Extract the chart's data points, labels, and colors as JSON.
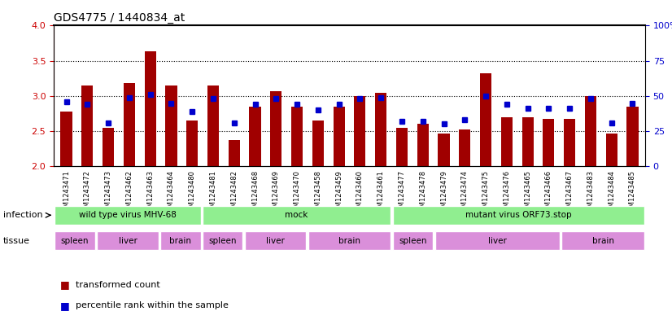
{
  "title": "GDS4775 / 1440834_at",
  "samples": [
    "GSM1243471",
    "GSM1243472",
    "GSM1243473",
    "GSM1243462",
    "GSM1243463",
    "GSM1243464",
    "GSM1243480",
    "GSM1243481",
    "GSM1243482",
    "GSM1243468",
    "GSM1243469",
    "GSM1243470",
    "GSM1243458",
    "GSM1243459",
    "GSM1243460",
    "GSM1243461",
    "GSM1243477",
    "GSM1243478",
    "GSM1243479",
    "GSM1243474",
    "GSM1243475",
    "GSM1243476",
    "GSM1243465",
    "GSM1243466",
    "GSM1243467",
    "GSM1243483",
    "GSM1243484",
    "GSM1243485"
  ],
  "bar_values": [
    2.78,
    3.15,
    2.55,
    3.18,
    3.63,
    3.15,
    2.65,
    3.15,
    2.37,
    2.85,
    3.07,
    2.85,
    2.65,
    2.85,
    3.0,
    3.05,
    2.55,
    2.6,
    2.47,
    2.53,
    3.32,
    2.7,
    2.7,
    2.68,
    2.68,
    3.0,
    2.47,
    2.85
  ],
  "percentile_values": [
    46,
    44,
    31,
    49,
    51,
    45,
    39,
    48,
    31,
    44,
    48,
    44,
    40,
    44,
    48,
    49,
    32,
    32,
    30,
    33,
    50,
    44,
    41,
    41,
    41,
    48,
    31,
    45
  ],
  "ymin": 2.0,
  "ymax": 4.0,
  "yticks": [
    2.0,
    2.5,
    3.0,
    3.5,
    4.0
  ],
  "bar_color": "#a00000",
  "blue_color": "#0000cc",
  "infection_groups": [
    {
      "label": "wild type virus MHV-68",
      "start": 0,
      "end": 7,
      "color": "#90ee90"
    },
    {
      "label": "mock",
      "start": 7,
      "end": 16,
      "color": "#90ee90"
    },
    {
      "label": "mutant virus ORF73.stop",
      "start": 16,
      "end": 28,
      "color": "#00cc00"
    }
  ],
  "tissue_groups": [
    {
      "label": "spleen",
      "start": 0,
      "end": 2,
      "color": "#da8fda"
    },
    {
      "label": "liver",
      "start": 2,
      "end": 5,
      "color": "#da8fda"
    },
    {
      "label": "brain",
      "start": 5,
      "end": 7,
      "color": "#da8fda"
    },
    {
      "label": "spleen",
      "start": 7,
      "end": 9,
      "color": "#da8fda"
    },
    {
      "label": "liver",
      "start": 9,
      "end": 12,
      "color": "#da8fda"
    },
    {
      "label": "brain",
      "start": 12,
      "end": 16,
      "color": "#da8fda"
    },
    {
      "label": "spleen",
      "start": 16,
      "end": 18,
      "color": "#da8fda"
    },
    {
      "label": "liver",
      "start": 18,
      "end": 24,
      "color": "#da8fda"
    },
    {
      "label": "brain",
      "start": 24,
      "end": 28,
      "color": "#da8fda"
    }
  ],
  "infection_labels_positions": [
    {
      "label": "wild type virus MHV-68",
      "start": 0,
      "end": 7
    },
    {
      "label": "mock",
      "start": 7,
      "end": 16
    },
    {
      "label": "mutant virus ORF73.stop",
      "start": 16,
      "end": 28
    }
  ],
  "tissue_label_positions": [
    {
      "label": "spleen",
      "start": 0,
      "end": 2
    },
    {
      "label": "liver",
      "start": 2,
      "end": 5
    },
    {
      "label": "brain",
      "start": 5,
      "end": 7
    },
    {
      "label": "spleen",
      "start": 7,
      "end": 9
    },
    {
      "label": "liver",
      "start": 9,
      "end": 12
    },
    {
      "label": "brain",
      "start": 12,
      "end": 16
    },
    {
      "label": "spleen",
      "start": 16,
      "end": 18
    },
    {
      "label": "liver",
      "start": 18,
      "end": 24
    },
    {
      "label": "brain",
      "start": 24,
      "end": 28
    }
  ]
}
